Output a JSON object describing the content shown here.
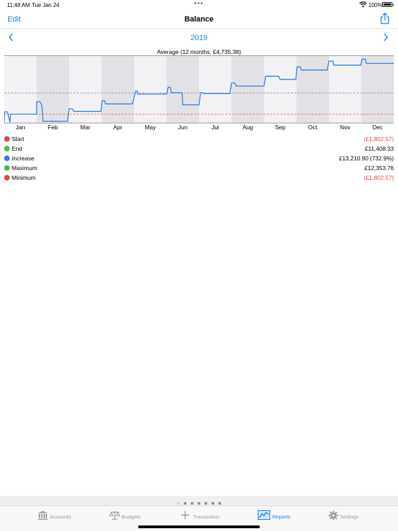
{
  "status": {
    "time": "11:48 AM",
    "date": "Tue Jan 24",
    "battery": "100%"
  },
  "nav": {
    "edit": "Edit",
    "title": "Balance"
  },
  "period": {
    "year": "2019"
  },
  "chart_data": {
    "type": "line",
    "title": "Average (12 months, £4,735.38)",
    "categories": [
      "Jan",
      "Feb",
      "Mar",
      "Apr",
      "May",
      "Jun",
      "Jul",
      "Aug",
      "Sep",
      "Oct",
      "Nov",
      "Dec"
    ],
    "ylim": [
      -2000,
      13200
    ],
    "reference_lines": [
      {
        "label": "Average",
        "value": 4735.38,
        "color": "#8a8aa0",
        "style": "dashed"
      },
      {
        "label": "Start",
        "value": 0,
        "color": "#e8453c",
        "style": "dashed"
      }
    ],
    "grid": "alternating month bands",
    "series": [
      {
        "color": "#2a7de1",
        "x": [
          0.0,
          0.02,
          0.05,
          0.08,
          0.11,
          0.14,
          0.17,
          0.2,
          0.23,
          0.26,
          0.29,
          0.32,
          0.35,
          0.38,
          0.41,
          0.44,
          0.47,
          0.5,
          0.53,
          0.56,
          0.59,
          0.62,
          0.65,
          0.68,
          0.71,
          0.74,
          0.77,
          0.8,
          0.83,
          0.86,
          0.89,
          0.92,
          0.95,
          0.98,
          1.0,
          1.02,
          1.05,
          1.08,
          1.11,
          1.14,
          1.17,
          1.2,
          1.23,
          1.26,
          1.29,
          1.32,
          1.35,
          1.38,
          1.41,
          1.44,
          1.47,
          1.5,
          1.53,
          1.56,
          1.59,
          1.62,
          1.65,
          1.68,
          1.71,
          1.74,
          1.77,
          1.8,
          1.83,
          1.86,
          1.89,
          1.92,
          1.95,
          1.98,
          2.0,
          2.02,
          2.05,
          2.08,
          2.11,
          2.14,
          2.17,
          2.2,
          2.23,
          2.26,
          2.29,
          2.32,
          2.35,
          2.38,
          2.41,
          2.44,
          2.47,
          2.5,
          2.53,
          2.56,
          2.59,
          2.62,
          2.65,
          2.68,
          2.71,
          2.74,
          2.77,
          2.8,
          2.83,
          2.86,
          2.89,
          2.92,
          2.95,
          2.98,
          3.0,
          3.02,
          3.05,
          3.08,
          3.11,
          3.14,
          3.17,
          3.2,
          3.23,
          3.26,
          3.29,
          3.32,
          3.35,
          3.38,
          3.41,
          3.44,
          3.47,
          3.5,
          3.53,
          3.56,
          3.59,
          3.62,
          3.65,
          3.68,
          3.71,
          3.74,
          3.77,
          3.8,
          3.83,
          3.86,
          3.89,
          3.92,
          3.95,
          3.98,
          4.0,
          4.02,
          4.05,
          4.08,
          4.11,
          4.14,
          4.17,
          4.2,
          4.23,
          4.26,
          4.29,
          4.32,
          4.35,
          4.38,
          4.41,
          4.44,
          4.47,
          4.5,
          4.53,
          4.56,
          4.59,
          4.62,
          4.65,
          4.68,
          4.71,
          4.74,
          4.77,
          4.8,
          4.83,
          4.86,
          4.89,
          4.92,
          4.95,
          4.98,
          5.0,
          5.02,
          5.05,
          5.08,
          5.11,
          5.14,
          5.17,
          5.2,
          5.23,
          5.26,
          5.29,
          5.32,
          5.35,
          5.38,
          5.41,
          5.44,
          5.47,
          5.5,
          5.53,
          5.56,
          5.59,
          5.62,
          5.65,
          5.68,
          5.71,
          5.74,
          5.77,
          5.8,
          5.83,
          5.86,
          5.89,
          5.92,
          5.95,
          5.98,
          6.0,
          6.02,
          6.05,
          6.08,
          6.11,
          6.14,
          6.17,
          6.2,
          6.23,
          6.26,
          6.29,
          6.32,
          6.35,
          6.38,
          6.41,
          6.44,
          6.47,
          6.5,
          6.53,
          6.56,
          6.59,
          6.62,
          6.65,
          6.68,
          6.71,
          6.74,
          6.77,
          6.8,
          6.83,
          6.86,
          6.89,
          6.92,
          6.95,
          6.98,
          7.0,
          7.02,
          7.05,
          7.08,
          7.11,
          7.14,
          7.17,
          7.2,
          7.23,
          7.26,
          7.29,
          7.32,
          7.35,
          7.38,
          7.41,
          7.44,
          7.47,
          7.5,
          7.53,
          7.56,
          7.59,
          7.62,
          7.65,
          7.68,
          7.71,
          7.74,
          7.77,
          7.8,
          7.83,
          7.86,
          7.89,
          7.92,
          7.95,
          7.98,
          8.0,
          8.02,
          8.05,
          8.08,
          8.11,
          8.14,
          8.17,
          8.2,
          8.23,
          8.26,
          8.29,
          8.32,
          8.35,
          8.38,
          8.41,
          8.44,
          8.47,
          8.5,
          8.53,
          8.56,
          8.59,
          8.62,
          8.65,
          8.68,
          8.71,
          8.74,
          8.77,
          8.8,
          8.83,
          8.86,
          8.89,
          8.92,
          8.95,
          8.98,
          9.0,
          9.02,
          9.05,
          9.08,
          9.11,
          9.14,
          9.17,
          9.2,
          9.23,
          9.26,
          9.29,
          9.32,
          9.35,
          9.38,
          9.41,
          9.44,
          9.47,
          9.5,
          9.53,
          9.56,
          9.59,
          9.62,
          9.65,
          9.68,
          9.71,
          9.74,
          9.77,
          9.8,
          9.83,
          9.86,
          9.89,
          9.92,
          9.95,
          9.98,
          10.0,
          10.02,
          10.05,
          10.08,
          10.11,
          10.14,
          10.17,
          10.2,
          10.23,
          10.26,
          10.29,
          10.32,
          10.35,
          10.38,
          10.41,
          10.44,
          10.47,
          10.5,
          10.53,
          10.56,
          10.59,
          10.62,
          10.65,
          10.68,
          10.71,
          10.74,
          10.77,
          10.8,
          10.83,
          10.86,
          10.89,
          10.92,
          10.95,
          10.98,
          11.0,
          11.02,
          11.05,
          11.08,
          11.11,
          11.14,
          11.17,
          11.2,
          11.23,
          11.26,
          11.29,
          11.32,
          11.35,
          11.38,
          11.41,
          11.44,
          11.47,
          11.5,
          11.53,
          11.56,
          11.59,
          11.62,
          11.65,
          11.68,
          11.71,
          11.74,
          11.77,
          11.8,
          11.83,
          11.86,
          11.89,
          11.92,
          11.95,
          11.98,
          12.0
        ],
        "points": [
          [
            0.0,
            -1802.57
          ],
          [
            0.01,
            500
          ],
          [
            0.1,
            500
          ],
          [
            0.18,
            -1802.57
          ],
          [
            0.2,
            0
          ],
          [
            1.0,
            0
          ],
          [
            1.0,
            2800
          ],
          [
            1.1,
            2800
          ],
          [
            1.16,
            2000
          ],
          [
            1.2,
            -1600
          ],
          [
            1.95,
            -1600
          ],
          [
            2.0,
            1200
          ],
          [
            2.1,
            1200
          ],
          [
            2.15,
            600
          ],
          [
            2.98,
            600
          ],
          [
            3.02,
            3000
          ],
          [
            3.1,
            3000
          ],
          [
            3.12,
            2300
          ],
          [
            3.95,
            2300
          ],
          [
            4.05,
            5200
          ],
          [
            4.1,
            5200
          ],
          [
            4.12,
            4500
          ],
          [
            5.0,
            4500
          ],
          [
            5.05,
            6000
          ],
          [
            5.12,
            6000
          ],
          [
            5.15,
            4800
          ],
          [
            5.48,
            4800
          ],
          [
            5.5,
            2100
          ],
          [
            6.0,
            2100
          ],
          [
            6.05,
            4800
          ],
          [
            6.12,
            4800
          ],
          [
            6.15,
            4600
          ],
          [
            6.95,
            4600
          ],
          [
            7.0,
            7000
          ],
          [
            7.1,
            7000
          ],
          [
            7.15,
            6300
          ],
          [
            8.0,
            6300
          ],
          [
            8.05,
            8500
          ],
          [
            8.45,
            8500
          ],
          [
            8.5,
            7800
          ],
          [
            8.98,
            7800
          ],
          [
            9.02,
            10600
          ],
          [
            9.12,
            10600
          ],
          [
            9.15,
            9900
          ],
          [
            9.95,
            9900
          ],
          [
            10.0,
            11900
          ],
          [
            10.12,
            11900
          ],
          [
            10.15,
            11000
          ],
          [
            10.98,
            11000
          ],
          [
            11.02,
            12353.76
          ],
          [
            11.12,
            12353.76
          ],
          [
            11.15,
            11408.33
          ],
          [
            12.0,
            11408.33
          ]
        ]
      }
    ]
  },
  "stats": [
    {
      "label": "Start",
      "value": "(£1,802.57)",
      "dot_color": "#e8453c",
      "value_color": "#e8453c"
    },
    {
      "label": "End",
      "value": "£11,408.33",
      "dot_color": "#3cc14e",
      "value_color": "#000000"
    },
    {
      "label": "Increase",
      "value": "£13,210.90 (732.9%)",
      "dot_color": "#2a7de1",
      "value_color": "#000000"
    },
    {
      "label": "Maximum",
      "value": "£12,353.76",
      "dot_color": "#3cc14e",
      "value_color": "#000000"
    },
    {
      "label": "Minimum",
      "value": "(£1,802.57)",
      "dot_color": "#e8453c",
      "value_color": "#e8453c"
    }
  ],
  "tabs": [
    {
      "label": "Accounts",
      "icon": "bank-icon",
      "active": false
    },
    {
      "label": "Budgets",
      "icon": "scales-icon",
      "active": false
    },
    {
      "label": "Transaction",
      "icon": "plus-icon",
      "active": false
    },
    {
      "label": "Reports",
      "icon": "chart-icon",
      "active": true
    },
    {
      "label": "Settings",
      "icon": "gear-icon",
      "active": false
    }
  ],
  "colors": {
    "accent": "#1a7cf2",
    "band_light": "#f2f2f5",
    "band_dark": "#e2e2e6"
  }
}
